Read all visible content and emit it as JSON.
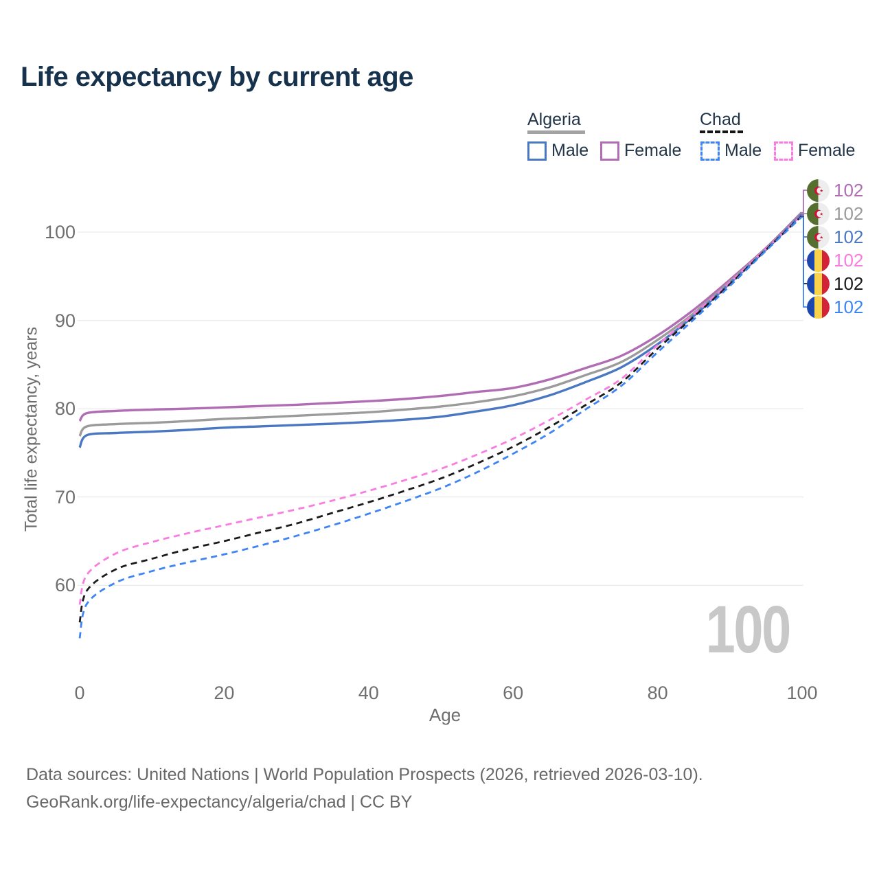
{
  "title": "Life expectancy by current age",
  "watermark_age": "100",
  "legend": {
    "groups": [
      {
        "name": "Algeria",
        "line_style": "solid",
        "underline_color": "#a3a3a3",
        "items": [
          {
            "label": "Male",
            "color": "#4a77c2"
          },
          {
            "label": "Female",
            "color": "#b16db4"
          }
        ]
      },
      {
        "name": "Chad",
        "line_style": "dashed",
        "underline_color": "#151515",
        "items": [
          {
            "label": "Male",
            "color": "#3e84f4"
          },
          {
            "label": "Female",
            "color": "#f97ce1"
          }
        ]
      }
    ]
  },
  "footer": {
    "line1": "Data sources: United Nations | World Population Prospects (2026, retrieved 2026-03-10).",
    "line2": "GeoRank.org/life-expectancy/algeria/chad | CC BY"
  },
  "chart_data": {
    "type": "line",
    "title": "Life expectancy by current age",
    "xlabel": "Age",
    "ylabel": "Total life expectancy, years",
    "xlim": [
      0,
      100
    ],
    "ylim": [
      53,
      104
    ],
    "xticks": [
      0,
      20,
      40,
      60,
      80,
      100
    ],
    "yticks": [
      60,
      70,
      80,
      90,
      100
    ],
    "grid": "horizontal",
    "legend_position": "top-right",
    "series": [
      {
        "id": "algeria-female",
        "country": "Algeria",
        "sex": "Female",
        "color": "#b16db4",
        "dash": "solid",
        "flag": "algeria",
        "end_label": "102",
        "points": [
          [
            0,
            78.6
          ],
          [
            1,
            79.5
          ],
          [
            5,
            79.75
          ],
          [
            10,
            79.9
          ],
          [
            15,
            80.0
          ],
          [
            20,
            80.15
          ],
          [
            25,
            80.3
          ],
          [
            30,
            80.45
          ],
          [
            35,
            80.65
          ],
          [
            40,
            80.85
          ],
          [
            45,
            81.1
          ],
          [
            50,
            81.45
          ],
          [
            55,
            81.9
          ],
          [
            60,
            82.35
          ],
          [
            65,
            83.3
          ],
          [
            70,
            84.6
          ],
          [
            75,
            86.0
          ],
          [
            80,
            88.3
          ],
          [
            85,
            91.2
          ],
          [
            90,
            94.6
          ],
          [
            95,
            98.2
          ],
          [
            100,
            102
          ]
        ]
      },
      {
        "id": "algeria-both",
        "country": "Algeria",
        "sex": "Both sexes",
        "color": "#9b9b9b",
        "dash": "solid",
        "flag": "algeria",
        "end_label": "102",
        "points": [
          [
            0,
            76.9
          ],
          [
            1,
            78.0
          ],
          [
            5,
            78.25
          ],
          [
            10,
            78.4
          ],
          [
            15,
            78.6
          ],
          [
            20,
            78.85
          ],
          [
            25,
            79.0
          ],
          [
            30,
            79.2
          ],
          [
            35,
            79.4
          ],
          [
            40,
            79.6
          ],
          [
            45,
            79.9
          ],
          [
            50,
            80.25
          ],
          [
            55,
            80.75
          ],
          [
            60,
            81.4
          ],
          [
            65,
            82.4
          ],
          [
            70,
            83.8
          ],
          [
            75,
            85.3
          ],
          [
            80,
            87.8
          ],
          [
            85,
            90.8
          ],
          [
            90,
            94.4
          ],
          [
            95,
            98.1
          ],
          [
            100,
            102
          ]
        ]
      },
      {
        "id": "algeria-male",
        "country": "Algeria",
        "sex": "Male",
        "color": "#4a77c2",
        "dash": "solid",
        "flag": "algeria",
        "end_label": "102",
        "points": [
          [
            0,
            75.6
          ],
          [
            1,
            77.0
          ],
          [
            5,
            77.25
          ],
          [
            10,
            77.4
          ],
          [
            15,
            77.6
          ],
          [
            20,
            77.85
          ],
          [
            25,
            78.0
          ],
          [
            30,
            78.15
          ],
          [
            35,
            78.3
          ],
          [
            40,
            78.5
          ],
          [
            45,
            78.75
          ],
          [
            50,
            79.1
          ],
          [
            55,
            79.7
          ],
          [
            60,
            80.4
          ],
          [
            65,
            81.5
          ],
          [
            70,
            83.0
          ],
          [
            75,
            84.7
          ],
          [
            80,
            87.3
          ],
          [
            85,
            90.5
          ],
          [
            90,
            94.2
          ],
          [
            95,
            98.0
          ],
          [
            100,
            102
          ]
        ]
      },
      {
        "id": "chad-female",
        "country": "Chad",
        "sex": "Female",
        "color": "#f97ce1",
        "dash": "dashed",
        "flag": "chad",
        "end_label": "102",
        "points": [
          [
            0,
            57.8
          ],
          [
            1,
            61.2
          ],
          [
            5,
            63.6
          ],
          [
            10,
            64.9
          ],
          [
            15,
            65.9
          ],
          [
            20,
            66.8
          ],
          [
            25,
            67.7
          ],
          [
            30,
            68.6
          ],
          [
            35,
            69.6
          ],
          [
            40,
            70.7
          ],
          [
            45,
            71.9
          ],
          [
            50,
            73.2
          ],
          [
            55,
            74.8
          ],
          [
            60,
            76.6
          ],
          [
            65,
            78.7
          ],
          [
            70,
            81.0
          ],
          [
            75,
            83.4
          ],
          [
            80,
            87.2
          ],
          [
            85,
            90.7
          ],
          [
            90,
            94.3
          ],
          [
            95,
            98.1
          ],
          [
            100,
            102
          ]
        ]
      },
      {
        "id": "chad-both",
        "country": "Chad",
        "sex": "Both sexes",
        "color": "#1b1b1b",
        "dash": "dashed",
        "flag": "chad",
        "end_label": "102",
        "points": [
          [
            0,
            55.8
          ],
          [
            1,
            59.4
          ],
          [
            5,
            61.8
          ],
          [
            10,
            63.0
          ],
          [
            15,
            64.1
          ],
          [
            20,
            65.0
          ],
          [
            25,
            66.0
          ],
          [
            30,
            67.0
          ],
          [
            35,
            68.2
          ],
          [
            40,
            69.4
          ],
          [
            45,
            70.7
          ],
          [
            50,
            72.1
          ],
          [
            55,
            73.8
          ],
          [
            60,
            75.7
          ],
          [
            65,
            77.9
          ],
          [
            70,
            80.4
          ],
          [
            75,
            83.0
          ],
          [
            80,
            86.8
          ],
          [
            85,
            90.4
          ],
          [
            90,
            94.1
          ],
          [
            95,
            98.0
          ],
          [
            100,
            102
          ]
        ]
      },
      {
        "id": "chad-male",
        "country": "Chad",
        "sex": "Male",
        "color": "#3e84f4",
        "dash": "dashed",
        "flag": "chad",
        "end_label": "102",
        "points": [
          [
            0,
            54.0
          ],
          [
            1,
            57.9
          ],
          [
            5,
            60.3
          ],
          [
            10,
            61.6
          ],
          [
            15,
            62.6
          ],
          [
            20,
            63.5
          ],
          [
            25,
            64.5
          ],
          [
            30,
            65.6
          ],
          [
            35,
            66.8
          ],
          [
            40,
            68.1
          ],
          [
            45,
            69.5
          ],
          [
            50,
            71.0
          ],
          [
            55,
            72.8
          ],
          [
            60,
            74.9
          ],
          [
            65,
            77.2
          ],
          [
            70,
            79.9
          ],
          [
            75,
            82.6
          ],
          [
            80,
            86.4
          ],
          [
            85,
            90.1
          ],
          [
            90,
            93.9
          ],
          [
            95,
            97.9
          ],
          [
            100,
            102
          ]
        ]
      }
    ]
  }
}
